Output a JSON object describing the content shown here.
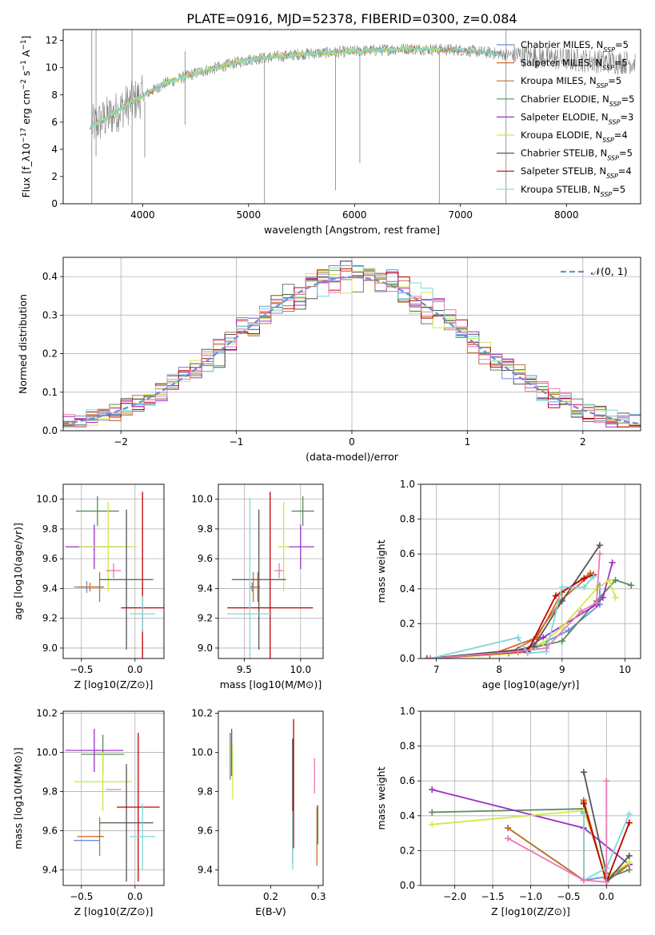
{
  "figure": {
    "title": "PLATE=0916, MJD=52378, FIBERID=0300, z=0.084"
  },
  "colors": {
    "chabrier_miles": "#6b8fd6",
    "salpeter_miles": "#d96a1f",
    "kroupa_miles": "#b87333",
    "chabrier_elodie": "#5b8a5b",
    "salpeter_elodie": "#9b30c4",
    "kroupa_elodie": "#cfe84a",
    "chabrier_stelib": "#555555",
    "salpeter_stelib": "#c00000",
    "kroupa_stelib": "#7fd6de",
    "pink": "#e87ab8",
    "data_gray": "#808080",
    "normal_curve": "#6a8fd6"
  },
  "chart_data": [
    {
      "id": "spectrum",
      "type": "line",
      "title": "PLATE=0916, MJD=52378, FIBERID=0300, z=0.084",
      "xlabel": "wavelength [Angstrom, rest frame]",
      "ylabel": "Flux [f_λ10^-17 erg cm^-2 s^-1 A^-1]",
      "xlim": [
        3250,
        8700
      ],
      "ylim": [
        0,
        12.8
      ],
      "xticks": [
        4000,
        5000,
        6000,
        7000,
        8000
      ],
      "yticks": [
        0,
        2,
        4,
        6,
        8,
        10,
        12
      ],
      "grid": false,
      "legend_position": "upper-right",
      "legend": [
        {
          "label": "Chabrier MILES, N_SSP=5",
          "color_key": "chabrier_miles"
        },
        {
          "label": "Salpeter MILES, N_SSP=5",
          "color_key": "salpeter_miles"
        },
        {
          "label": "Kroupa MILES, N_SSP=5",
          "color_key": "kroupa_miles"
        },
        {
          "label": "Chabrier ELODIE, N_SSP=5",
          "color_key": "chabrier_elodie"
        },
        {
          "label": "Salpeter ELODIE, N_SSP=3",
          "color_key": "salpeter_elodie"
        },
        {
          "label": "Kroupa ELODIE, N_SSP=4",
          "color_key": "kroupa_elodie"
        },
        {
          "label": "Chabrier STELIB, N_SSP=5",
          "color_key": "chabrier_stelib"
        },
        {
          "label": "Salpeter STELIB, N_SSP=4",
          "color_key": "salpeter_stelib"
        },
        {
          "label": "Kroupa STELIB, N_SSP=5",
          "color_key": "kroupa_stelib"
        }
      ],
      "continuum": {
        "x": [
          3500,
          3700,
          3900,
          4000,
          4200,
          4500,
          5000,
          5500,
          6000,
          6500,
          7000,
          7400,
          8000,
          8500
        ],
        "y": [
          5.6,
          6.5,
          7.5,
          7.9,
          8.8,
          9.6,
          10.6,
          11.0,
          11.2,
          11.4,
          11.3,
          11.0,
          10.6,
          10.4
        ]
      },
      "model_ranges": [
        {
          "color_key": "salpeter_miles",
          "x": [
            3500,
            7400
          ]
        },
        {
          "color_key": "kroupa_elodie",
          "x": [
            3500,
            6800
          ]
        },
        {
          "color_key": "kroupa_stelib",
          "x": [
            3500,
            7400
          ]
        }
      ],
      "spikes": [
        {
          "x": 3520,
          "y0": 0.0,
          "y1": 12.8
        },
        {
          "x": 3560,
          "y0": 3.5,
          "y1": 12.8
        },
        {
          "x": 3900,
          "y0": 0.0,
          "y1": 12.8
        },
        {
          "x": 4020,
          "y0": 3.4,
          "y1": 7.5
        },
        {
          "x": 4400,
          "y0": 5.8,
          "y1": 11.2
        },
        {
          "x": 5150,
          "y0": 0.0,
          "y1": 11.0
        },
        {
          "x": 5820,
          "y0": 1.0,
          "y1": 11.4
        },
        {
          "x": 6050,
          "y0": 3.0,
          "y1": 11.5
        },
        {
          "x": 6800,
          "y0": 0.0,
          "y1": 11.4
        },
        {
          "x": 7430,
          "y0": 0.0,
          "y1": 12.8
        }
      ]
    },
    {
      "id": "residuals",
      "type": "histogram",
      "xlabel": "(data-model)/error",
      "ylabel": "Normed distribution",
      "xlim": [
        -2.5,
        2.5
      ],
      "ylim": [
        0,
        0.45
      ],
      "xticks": [
        -2,
        -1,
        0,
        1,
        2
      ],
      "yticks": [
        0.0,
        0.1,
        0.2,
        0.3,
        0.4
      ],
      "grid": true,
      "legend_position": "upper-right",
      "legend": [
        {
          "label": "𝒩(0, 1)",
          "color_key": "normal_curve",
          "style": "dashed"
        }
      ],
      "bin_width": 0.1,
      "normal": {
        "mean": 0,
        "sigma": 1
      }
    },
    {
      "id": "age_vs_Z",
      "type": "errorbar",
      "xlabel": "Z [log10(Z/Z⊙)]",
      "ylabel": "age  [log10(age/yr)]",
      "xlim": [
        -0.67,
        0.27
      ],
      "ylim": [
        8.93,
        10.1
      ],
      "xticks": [
        -0.5,
        0.0
      ],
      "xticklabels": [
        "−0.5",
        "0.0"
      ],
      "yticks": [
        9.0,
        9.2,
        9.4,
        9.6,
        9.8,
        10.0
      ],
      "grid": true,
      "points": [
        {
          "color_key": "chabrier_miles",
          "x": -0.45,
          "xerr": 0.12,
          "y": 9.41,
          "yerr": 0.04
        },
        {
          "color_key": "salpeter_miles",
          "x": -0.42,
          "xerr": 0.12,
          "y": 9.41,
          "yerr": 0.03
        },
        {
          "color_key": "kroupa_miles",
          "x": -0.33,
          "xerr": 0.04,
          "y": 9.41,
          "yerr": 0.1
        },
        {
          "color_key": "chabrier_elodie",
          "x": -0.35,
          "xerr": 0.2,
          "y": 9.92,
          "yerr": 0.1
        },
        {
          "color_key": "salpeter_elodie",
          "x": -0.38,
          "xerr": 0.27,
          "y": 9.68,
          "yerr": 0.15
        },
        {
          "color_key": "kroupa_elodie",
          "x": -0.25,
          "xerr": 0.27,
          "y": 9.68,
          "yerr": 0.3
        },
        {
          "color_key": "chabrier_stelib",
          "x": -0.08,
          "xerr": 0.25,
          "y": 9.46,
          "yerr": 0.47
        },
        {
          "color_key": "salpeter_stelib",
          "x": 0.07,
          "xerr": 0.2,
          "y": 9.27,
          "yerr": 0.78
        },
        {
          "color_key": "kroupa_stelib",
          "x": 0.07,
          "xerr": 0.12,
          "y": 9.23,
          "yerr": 0.12
        },
        {
          "color_key": "pink",
          "x": -0.2,
          "xerr": 0.07,
          "y": 9.52,
          "yerr": 0.05
        }
      ]
    },
    {
      "id": "age_vs_mass",
      "type": "errorbar",
      "xlabel": "mass [log10(M/M⊙)]",
      "ylabel": "",
      "xlim": [
        9.27,
        10.2
      ],
      "ylim": [
        8.93,
        10.1
      ],
      "xticks": [
        9.5,
        10.0
      ],
      "xticklabels": [
        "9.5",
        "10.0"
      ],
      "yticks": [
        9.0,
        9.2,
        9.4,
        9.6,
        9.8,
        10.0
      ],
      "grid": true,
      "points": [
        {
          "color_key": "chabrier_miles",
          "x": 9.57,
          "xerr": 0.02,
          "y": 9.41,
          "yerr": 0.03
        },
        {
          "color_key": "salpeter_miles",
          "x": 9.58,
          "xerr": 0.03,
          "y": 9.41,
          "yerr": 0.1
        },
        {
          "color_key": "kroupa_miles",
          "x": 9.62,
          "xerr": 0.02,
          "y": 9.41,
          "yerr": 0.1
        },
        {
          "color_key": "chabrier_elodie",
          "x": 10.02,
          "xerr": 0.1,
          "y": 9.92,
          "yerr": 0.1
        },
        {
          "color_key": "salpeter_elodie",
          "x": 10.0,
          "xerr": 0.12,
          "y": 9.68,
          "yerr": 0.15
        },
        {
          "color_key": "kroupa_elodie",
          "x": 9.85,
          "xerr": 0.05,
          "y": 9.68,
          "yerr": 0.3
        },
        {
          "color_key": "chabrier_stelib",
          "x": 9.63,
          "xerr": 0.24,
          "y": 9.46,
          "yerr": 0.47
        },
        {
          "color_key": "salpeter_stelib",
          "x": 9.73,
          "xerr": 0.38,
          "y": 9.27,
          "yerr": 0.78
        },
        {
          "color_key": "kroupa_stelib",
          "x": 9.55,
          "xerr": 0.2,
          "y": 9.23,
          "yerr": 0.78
        },
        {
          "color_key": "pink",
          "x": 9.81,
          "xerr": 0.04,
          "y": 9.52,
          "yerr": 0.05
        }
      ]
    },
    {
      "id": "weight_vs_age",
      "type": "line",
      "xlabel": "age  [log10(age/yr)]",
      "ylabel": "mass weight",
      "xlim": [
        6.75,
        10.25
      ],
      "ylim": [
        0,
        1.0
      ],
      "xticks": [
        7,
        8,
        9,
        10
      ],
      "yticks": [
        0.0,
        0.2,
        0.4,
        0.6,
        0.8,
        1.0
      ],
      "grid": true,
      "series": [
        {
          "color_key": "chabrier_miles",
          "x": [
            6.9,
            8.3,
            8.6,
            9.1,
            9.6,
            9.6
          ],
          "y": [
            0.0,
            0.04,
            0.07,
            0.16,
            0.31,
            0.42
          ]
        },
        {
          "color_key": "salpeter_miles",
          "x": [
            6.9,
            7.85,
            8.6,
            9.0,
            9.45
          ],
          "y": [
            0.0,
            0.02,
            0.12,
            0.38,
            0.49
          ]
        },
        {
          "color_key": "kroupa_miles",
          "x": [
            6.9,
            8.15,
            8.55,
            9.0,
            9.45
          ],
          "y": [
            0.0,
            0.03,
            0.11,
            0.34,
            0.48
          ]
        },
        {
          "color_key": "chabrier_elodie",
          "x": [
            6.9,
            8.4,
            8.75,
            9.0,
            9.55,
            9.85,
            10.1
          ],
          "y": [
            0.0,
            0.05,
            0.08,
            0.1,
            0.33,
            0.45,
            0.42
          ]
        },
        {
          "color_key": "salpeter_elodie",
          "x": [
            6.9,
            8.4,
            8.7,
            9.55,
            9.65,
            9.8
          ],
          "y": [
            0.0,
            0.05,
            0.12,
            0.31,
            0.35,
            0.55
          ]
        },
        {
          "color_key": "kroupa_elodie",
          "x": [
            6.9,
            8.3,
            8.7,
            9.0,
            9.55,
            9.75,
            9.85
          ],
          "y": [
            0.0,
            0.03,
            0.09,
            0.18,
            0.4,
            0.45,
            0.35
          ]
        },
        {
          "color_key": "chabrier_stelib",
          "x": [
            6.85,
            8.3,
            8.55,
            9.0,
            9.6
          ],
          "y": [
            0.0,
            0.05,
            0.07,
            0.33,
            0.65
          ]
        },
        {
          "color_key": "salpeter_stelib",
          "x": [
            6.9,
            8.45,
            8.9,
            9.35,
            9.5
          ],
          "y": [
            0.0,
            0.04,
            0.36,
            0.46,
            0.48
          ]
        },
        {
          "color_key": "kroupa_stelib",
          "x": [
            6.9,
            8.3,
            8.45,
            8.75,
            9.0,
            9.35,
            9.5
          ],
          "y": [
            0.0,
            0.12,
            0.03,
            0.04,
            0.41,
            0.41,
            0.47
          ]
        },
        {
          "color_key": "pink",
          "x": [
            6.9,
            8.3,
            8.75,
            9.3,
            9.55,
            9.6
          ],
          "y": [
            0.0,
            0.04,
            0.06,
            0.27,
            0.32,
            0.6
          ]
        }
      ]
    },
    {
      "id": "mass_vs_Z",
      "type": "errorbar",
      "xlabel": "Z [log10(Z/Z⊙)]",
      "ylabel": "mass [log10(M/M⊙)]",
      "xlim": [
        -0.67,
        0.27
      ],
      "ylim": [
        9.32,
        10.21
      ],
      "xticks": [
        -0.5,
        0.0
      ],
      "xticklabels": [
        "−0.5",
        "0.0"
      ],
      "yticks": [
        9.4,
        9.6,
        9.8,
        10.0,
        10.2
      ],
      "grid": true,
      "points": [
        {
          "color_key": "chabrier_miles",
          "x": -0.45,
          "xerr": 0.12,
          "y": 9.55,
          "yerr": 0.0
        },
        {
          "color_key": "salpeter_miles",
          "x": -0.42,
          "xerr": 0.12,
          "y": 9.57,
          "yerr": 0.0
        },
        {
          "color_key": "kroupa_miles",
          "x": -0.33,
          "xerr": 0.04,
          "y": 9.57,
          "yerr": 0.1
        },
        {
          "color_key": "chabrier_elodie",
          "x": -0.3,
          "xerr": 0.2,
          "y": 9.99,
          "yerr": 0.1
        },
        {
          "color_key": "salpeter_elodie",
          "x": -0.38,
          "xerr": 0.27,
          "y": 10.01,
          "yerr": 0.11
        },
        {
          "color_key": "kroupa_elodie",
          "x": -0.3,
          "xerr": 0.27,
          "y": 9.85,
          "yerr": 0.15
        },
        {
          "color_key": "chabrier_stelib",
          "x": -0.08,
          "xerr": 0.25,
          "y": 9.64,
          "yerr": 0.3
        },
        {
          "color_key": "salpeter_stelib",
          "x": 0.03,
          "xerr": 0.2,
          "y": 9.72,
          "yerr": 0.38
        },
        {
          "color_key": "kroupa_stelib",
          "x": 0.07,
          "xerr": 0.12,
          "y": 9.57,
          "yerr": 0.17
        },
        {
          "color_key": "pink",
          "x": -0.2,
          "xerr": 0.07,
          "y": 9.81,
          "yerr": 0.0
        }
      ]
    },
    {
      "id": "mass_vs_EBV",
      "type": "errorbar",
      "xlabel": "E(B-V)",
      "ylabel": "",
      "xlim": [
        0.09,
        0.31
      ],
      "ylim": [
        9.32,
        10.21
      ],
      "xticks": [
        0.2,
        0.3
      ],
      "xticklabels": [
        "0.2",
        "0.3"
      ],
      "yticks": [
        9.4,
        9.6,
        9.8,
        10.0,
        10.2
      ],
      "grid": false,
      "points": [
        {
          "color_key": "chabrier_elodie",
          "x": 0.115,
          "xerr": 0.0,
          "y": 9.98,
          "yerr": 0.12
        },
        {
          "color_key": "salpeter_elodie",
          "x": 0.118,
          "xerr": 0.0,
          "y": 10.0,
          "yerr": 0.12
        },
        {
          "color_key": "kroupa_elodie",
          "x": 0.12,
          "xerr": 0.0,
          "y": 9.9,
          "yerr": 0.14
        },
        {
          "color_key": "chabrier_stelib",
          "x": 0.246,
          "xerr": 0.0,
          "y": 9.75,
          "yerr": 0.32
        },
        {
          "color_key": "salpeter_stelib",
          "x": 0.248,
          "xerr": 0.0,
          "y": 9.84,
          "yerr": 0.33
        },
        {
          "color_key": "kroupa_stelib",
          "x": 0.246,
          "xerr": 0.0,
          "y": 9.55,
          "yerr": 0.15
        },
        {
          "color_key": "pink",
          "x": 0.292,
          "xerr": 0.0,
          "y": 9.88,
          "yerr": 0.09
        },
        {
          "color_key": "salpeter_miles",
          "x": 0.297,
          "xerr": 0.0,
          "y": 9.57,
          "yerr": 0.15
        },
        {
          "color_key": "kroupa_miles",
          "x": 0.298,
          "xerr": 0.0,
          "y": 9.63,
          "yerr": 0.1
        },
        {
          "color_key": "chabrier_elodie",
          "x": 0.299,
          "xerr": 0.0,
          "y": 9.63,
          "yerr": 0.1
        }
      ]
    },
    {
      "id": "weight_vs_Z",
      "type": "line",
      "xlabel": "Z [log10(Z/Z⊙)]",
      "ylabel": "mass weight",
      "xlim": [
        -2.45,
        0.45
      ],
      "ylim": [
        0,
        1.0
      ],
      "xticks": [
        -2.0,
        -1.5,
        -1.0,
        -0.5,
        0.0
      ],
      "xticklabels": [
        "−2.0",
        "−1.5",
        "−1.0",
        "−0.5",
        "0.0"
      ],
      "yticks": [
        0.0,
        0.2,
        0.4,
        0.6,
        0.8,
        1.0
      ],
      "grid": true,
      "series": [
        {
          "color_key": "chabrier_miles",
          "x": [
            -0.3,
            -0.3,
            0.0,
            0.3
          ],
          "y": [
            0.42,
            0.03,
            0.05,
            0.12
          ]
        },
        {
          "color_key": "salpeter_miles",
          "x": [
            -1.3,
            -0.3,
            -0.3,
            0.0,
            0.3
          ],
          "y": [
            0.33,
            0.03,
            0.49,
            0.02,
            0.13
          ]
        },
        {
          "color_key": "kroupa_miles",
          "x": [
            -1.3,
            -0.3,
            -0.3,
            0.0,
            0.3
          ],
          "y": [
            0.33,
            0.03,
            0.48,
            0.02,
            0.12
          ]
        },
        {
          "color_key": "chabrier_elodie",
          "x": [
            -2.3,
            -0.3,
            0.0,
            0.3
          ],
          "y": [
            0.42,
            0.44,
            0.04,
            0.09
          ]
        },
        {
          "color_key": "salpeter_elodie",
          "x": [
            -2.3,
            -0.3,
            0.3
          ],
          "y": [
            0.55,
            0.33,
            0.12
          ]
        },
        {
          "color_key": "kroupa_elodie",
          "x": [
            -2.3,
            -0.3,
            0.0,
            0.3
          ],
          "y": [
            0.35,
            0.43,
            0.05,
            0.13
          ]
        },
        {
          "color_key": "chabrier_stelib",
          "x": [
            -0.3,
            0.0,
            0.0,
            0.3
          ],
          "y": [
            0.65,
            0.07,
            0.02,
            0.17
          ]
        },
        {
          "color_key": "salpeter_stelib",
          "x": [
            -0.3,
            0.0,
            0.3
          ],
          "y": [
            0.47,
            0.02,
            0.36
          ]
        },
        {
          "color_key": "kroupa_stelib",
          "x": [
            -0.3,
            -0.3,
            0.0,
            0.3
          ],
          "y": [
            0.41,
            0.03,
            0.1,
            0.41
          ]
        },
        {
          "color_key": "pink",
          "x": [
            -1.3,
            -0.3,
            0.0,
            0.0
          ],
          "y": [
            0.27,
            0.03,
            0.02,
            0.6
          ]
        }
      ]
    }
  ]
}
